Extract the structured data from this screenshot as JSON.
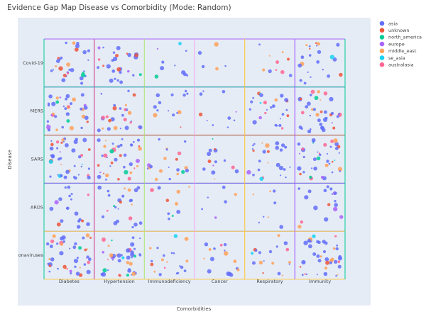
{
  "chart_data": {
    "type": "scatter",
    "title": "Evidence Gap Map Disease vs Comorbidity (Mode: Random)",
    "xlabel": "Comorbidities",
    "ylabel": "Disease",
    "x_categories": [
      "Diabetes",
      "Hypertension",
      "Immunodeficiency",
      "Cancer",
      "Respiratory",
      "Immunity"
    ],
    "y_categories": [
      "Covid-19",
      "MERS",
      "SARS",
      "ARDS",
      "onaviruses"
    ],
    "cell_border_colors_by_column": [
      "#00cc96",
      "#d84a9a",
      "#b6e880",
      "#f4a6f0",
      "#fecb52",
      "#ab63fa"
    ],
    "cell_border_colors_by_row": [
      "#ab63fa",
      "#19b2a2",
      "#d8563f",
      "#636efa",
      "#fecb52"
    ],
    "legend_position": "top-right",
    "series": [
      {
        "name": "asia",
        "color": "#636efa",
        "weight": 62
      },
      {
        "name": "unknown",
        "color": "#ef553b",
        "weight": 8
      },
      {
        "name": "north_america",
        "color": "#00cc96",
        "weight": 3
      },
      {
        "name": "europe",
        "color": "#ab63fa",
        "weight": 4
      },
      {
        "name": "middle_east",
        "color": "#ffa15a",
        "weight": 14
      },
      {
        "name": "se_asia",
        "color": "#19d3f3",
        "weight": 2
      },
      {
        "name": "australasia",
        "color": "#ff6692",
        "weight": 7
      }
    ],
    "cell_density": [
      [
        30,
        28,
        10,
        5,
        10,
        22
      ],
      [
        38,
        30,
        14,
        10,
        26,
        36
      ],
      [
        42,
        40,
        20,
        14,
        26,
        40
      ],
      [
        20,
        24,
        10,
        6,
        8,
        18
      ],
      [
        44,
        42,
        20,
        16,
        18,
        40
      ]
    ],
    "grid": true
  }
}
